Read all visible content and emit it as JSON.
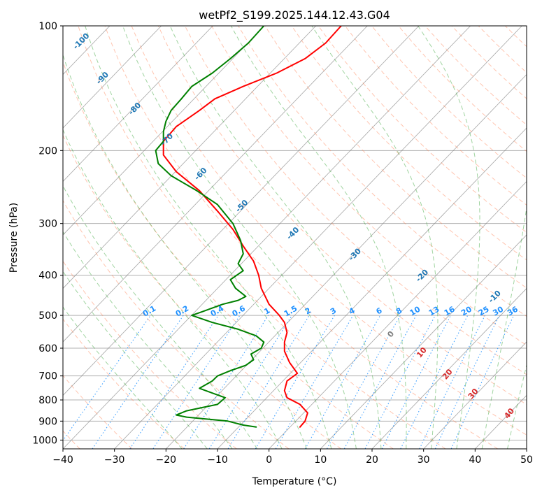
{
  "chart_data": {
    "type": "line",
    "title": "wetPf2_S199.2025.144.12.43.G04",
    "xlabel": "Temperature (°C)",
    "ylabel": "Pressure (hPa)",
    "xlim": [
      -40,
      50
    ],
    "ylim": [
      1050,
      100
    ],
    "y_scale": "log",
    "x_ticks": [
      "−40",
      "−30",
      "−20",
      "−10",
      "0",
      "10",
      "20",
      "30",
      "40",
      "50"
    ],
    "x_tick_values": [
      -40,
      -30,
      -20,
      -10,
      0,
      10,
      20,
      30,
      40,
      50
    ],
    "y_ticks": [
      "100",
      "200",
      "300",
      "400",
      "500",
      "600",
      "700",
      "800",
      "900",
      "1000"
    ],
    "y_tick_values": [
      100,
      200,
      300,
      400,
      500,
      600,
      700,
      800,
      900,
      1000
    ],
    "grid": true,
    "series": [
      {
        "role": "temperature",
        "color": "#ff0000",
        "pressure": [
          930,
          900,
          860,
          820,
          790,
          760,
          720,
          690,
          650,
          610,
          580,
          550,
          520,
          500,
          470,
          430,
          400,
          370,
          340,
          310,
          280,
          250,
          225,
          205,
          190,
          175,
          160,
          150,
          140,
          130,
          120,
          110,
          100
        ],
        "temperature": [
          6.0,
          7.0,
          7.5,
          6.0,
          3.5,
          3.0,
          3.5,
          5.5,
          4.0,
          3.0,
          3.0,
          3.5,
          3.0,
          2.0,
          0.0,
          -1.5,
          -2.0,
          -3.0,
          -5.0,
          -7.0,
          -10.0,
          -13.5,
          -18.0,
          -20.5,
          -20.5,
          -18.0,
          -13.5,
          -10.5,
          -5.0,
          1.5,
          7.0,
          11.0,
          14.0
        ]
      },
      {
        "role": "dewpoint",
        "color": "#008000",
        "pressure": [
          930,
          920,
          900,
          880,
          870,
          850,
          820,
          790,
          770,
          750,
          720,
          700,
          680,
          660,
          640,
          620,
          600,
          580,
          560,
          540,
          520,
          500,
          490,
          480,
          470,
          460,
          450,
          430,
          410,
          390,
          375,
          355,
          330,
          300,
          270,
          250,
          230,
          215,
          200,
          190,
          180,
          170,
          160,
          150,
          140,
          130,
          120,
          110,
          100
        ],
        "temperature": [
          -2.5,
          -5.0,
          -8.0,
          -16.0,
          -18.0,
          -16.0,
          -10.0,
          -8.5,
          -11.0,
          -13.5,
          -11.0,
          -10.0,
          -7.5,
          -4.5,
          -3.0,
          -3.5,
          -1.5,
          -1.0,
          -2.5,
          -6.0,
          -11.0,
          -15.0,
          -13.0,
          -11.0,
          -9.0,
          -6.0,
          -4.5,
          -6.5,
          -7.5,
          -5.0,
          -6.0,
          -5.0,
          -5.5,
          -7.0,
          -10.0,
          -14.0,
          -19.0,
          -21.5,
          -22.0,
          -20.5,
          -20.5,
          -20.0,
          -19.0,
          -17.0,
          -15.0,
          -11.0,
          -7.5,
          -4.0,
          -1.0
        ]
      }
    ],
    "dry_adiabat_labels": [
      "-100",
      "-90",
      "-80",
      "-70",
      "-60",
      "-50",
      "-40",
      "-30",
      "-20",
      "-10"
    ],
    "mixing_ratio_labels": [
      "0.1",
      "0.2",
      "0.4",
      "0.6",
      "1",
      "1.5",
      "2",
      "3",
      "4",
      "6",
      "8",
      "10",
      "13",
      "16",
      "20",
      "25",
      "30",
      "36"
    ],
    "moist_adiabat_labels": [
      "0",
      "10",
      "20",
      "30",
      "40"
    ],
    "colors": {
      "temperature": "#ff0000",
      "dewpoint": "#008000",
      "isotherm": "#808080",
      "dry_adiabat": "#ff7f50",
      "moist_adiabat": "#2ca02c",
      "mixing_ratio": "#1e90ff",
      "dry_label": "#1f77b4",
      "moist_label": "#d62728",
      "frame": "#000000"
    }
  }
}
